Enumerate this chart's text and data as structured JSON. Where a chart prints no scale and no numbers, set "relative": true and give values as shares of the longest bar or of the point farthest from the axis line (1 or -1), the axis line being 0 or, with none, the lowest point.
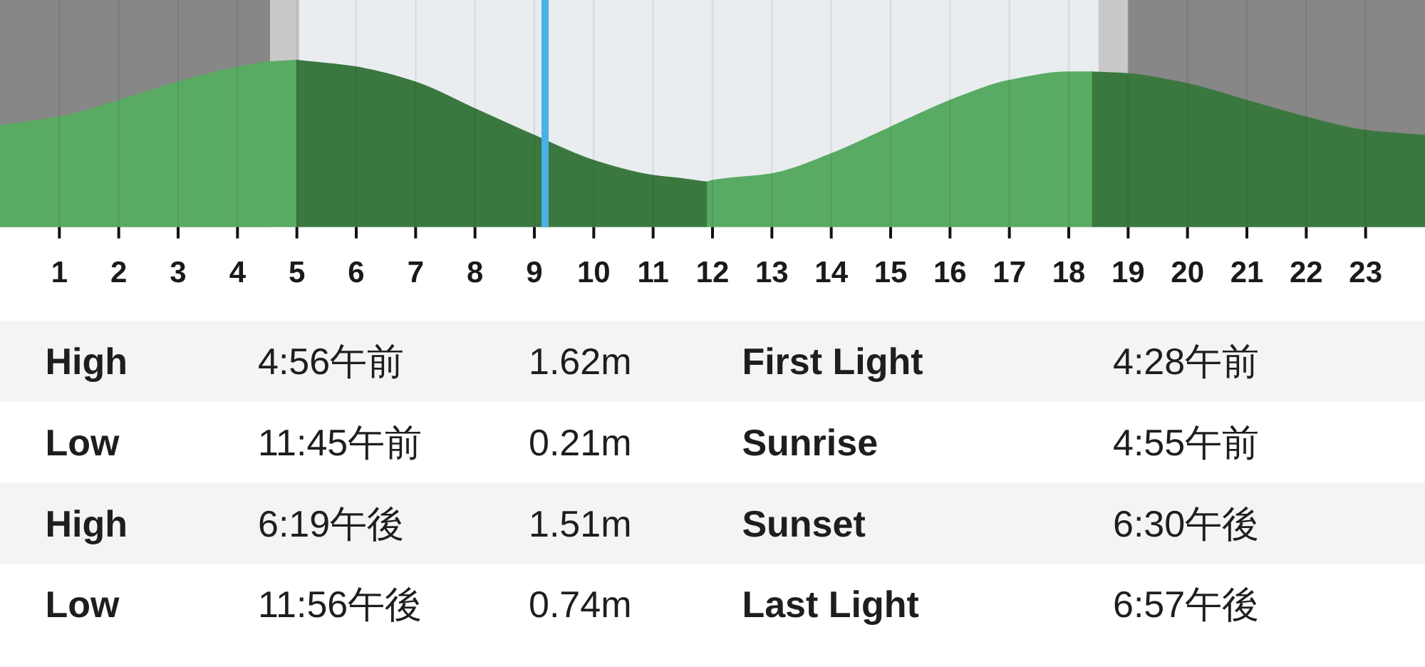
{
  "chart_data": {
    "type": "area",
    "relative": true,
    "x": [
      0,
      1,
      2,
      3,
      4,
      4.5,
      5.0,
      6,
      7,
      8,
      9,
      10,
      11,
      11.5,
      11.9,
      12,
      13,
      14,
      15,
      16,
      17,
      18,
      18.4,
      19,
      20,
      21,
      22,
      23,
      24
    ],
    "series": [
      {
        "color": "#59aa62",
        "values": [
          0.61,
          0.66,
          0.76,
          0.87,
          0.96,
          0.99,
          1.0,
          null,
          null,
          null,
          null,
          null,
          null,
          null,
          0.27,
          0.28,
          0.32,
          0.44,
          0.6,
          0.76,
          0.88,
          0.93,
          0.93,
          null,
          null,
          null,
          null,
          null,
          null
        ]
      },
      {
        "color": "#3a783f",
        "values": [
          null,
          null,
          null,
          null,
          null,
          null,
          1.0,
          0.96,
          0.87,
          0.71,
          0.55,
          0.4,
          0.31,
          0.29,
          0.27,
          null,
          null,
          null,
          null,
          null,
          null,
          null,
          0.93,
          0.92,
          0.86,
          0.76,
          0.66,
          0.58,
          0.55
        ]
      }
    ],
    "xlim": [
      0,
      24
    ],
    "xticks": [
      1,
      2,
      3,
      4,
      5,
      6,
      7,
      8,
      9,
      10,
      11,
      12,
      13,
      14,
      15,
      16,
      17,
      18,
      19,
      20,
      21,
      22,
      23
    ],
    "grid": "x",
    "bands": [
      {
        "axis": "x",
        "from": 0,
        "to": 4.55,
        "color": "#878787"
      },
      {
        "axis": "x",
        "from": 4.55,
        "to": 5.04,
        "color": "#c9c9c9"
      },
      {
        "axis": "x",
        "from": 18.5,
        "to": 19.0,
        "color": "#c9c9c9"
      },
      {
        "axis": "x",
        "from": 19.0,
        "to": 24,
        "color": "#878787"
      }
    ],
    "ref_lines": [
      {
        "axis": "x",
        "value": 9.18,
        "color": "#4ab0e8"
      }
    ],
    "annotations": [
      "High",
      "4:56午前",
      "1.62m",
      "First Light",
      "4:28午前",
      "Low",
      "11:45午前",
      "0.21m",
      "Sunrise",
      "4:55午前",
      "High",
      "6:19午後",
      "1.51m",
      "Sunset",
      "6:30午後",
      "Low",
      "11:56午後",
      "0.74m",
      "Last Light",
      "6:57午後"
    ]
  }
}
